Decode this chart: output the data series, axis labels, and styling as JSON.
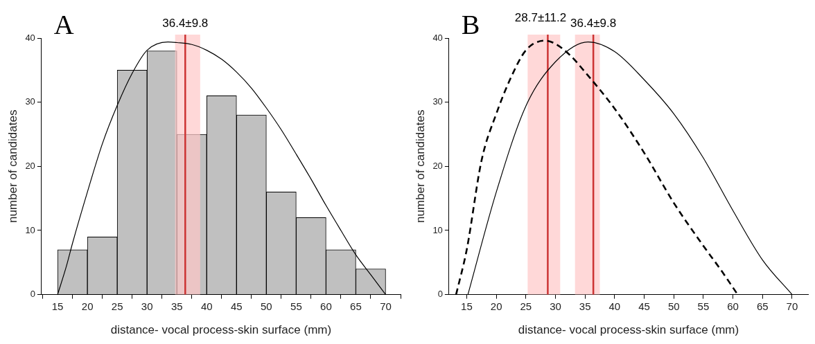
{
  "chart_data": [
    {
      "type": "histogram",
      "title": "A",
      "xlabel": "distance- vocal process-skin surface (mm)",
      "ylabel": "number of candidates",
      "bins": [
        15,
        20,
        25,
        30,
        35,
        40,
        45,
        50,
        55,
        60,
        65,
        70
      ],
      "values": [
        7,
        9,
        35,
        38,
        25,
        31,
        28,
        16,
        12,
        7,
        4
      ],
      "color": "#c0c0c0",
      "series": [
        {
          "type": "line",
          "color": "#000000",
          "line_style": "solid",
          "x": [
            15,
            16.5,
            17.5,
            20,
            22.5,
            25,
            27.5,
            30,
            33.5,
            35,
            37.5,
            40,
            42.5,
            45,
            47.5,
            50,
            52.5,
            55,
            57.5,
            60,
            62.5,
            65,
            67.5,
            70
          ],
          "values": [
            0,
            4.5,
            8,
            16,
            23.5,
            29.5,
            34.5,
            38.1,
            39.4,
            39.3,
            39,
            38.1,
            36.7,
            34.7,
            32.2,
            29.1,
            25.7,
            21.9,
            18,
            13.9,
            10,
            6.2,
            3.1,
            0
          ]
        }
      ],
      "xlim": [
        12.3,
        72.5
      ],
      "xticks": [
        15,
        20,
        25,
        30,
        35,
        40,
        45,
        50,
        55,
        60,
        65,
        70
      ],
      "ylim": [
        0,
        40
      ],
      "yticks": [
        0,
        10,
        20,
        30,
        40
      ],
      "grid": false,
      "legend": false,
      "marker": "none",
      "ref_lines": [
        {
          "axis": "x",
          "value": 36.4,
          "label": "36.4±9.8",
          "color": "#cc3333"
        }
      ],
      "bands": [
        {
          "axis": "x",
          "from": 34.7,
          "to": 38.9,
          "color": "#ffc8c8"
        }
      ]
    },
    {
      "type": "line",
      "title": "B",
      "xlabel": "distance- vocal process-skin surface (mm)",
      "ylabel": "number of candidates",
      "series": [
        {
          "color": "#000000",
          "line_style": "dashed",
          "x": [
            13.2,
            15,
            17.5,
            20,
            22.5,
            25,
            28.3,
            30,
            32.5,
            35,
            40,
            45,
            50,
            55,
            58,
            60.8
          ],
          "values": [
            0,
            7,
            20.9,
            28.2,
            33.9,
            38.1,
            39.6,
            39.1,
            37.3,
            34.7,
            29,
            22.1,
            14.3,
            7.6,
            3.8,
            0
          ]
        },
        {
          "color": "#000000",
          "line_style": "solid",
          "x": [
            15.2,
            20,
            25,
            30,
            35.5,
            40,
            45,
            50,
            55,
            60,
            65,
            70
          ],
          "values": [
            0,
            16,
            29.4,
            36.3,
            39.4,
            37.9,
            33.5,
            28.2,
            21.3,
            13.1,
            5.4,
            0
          ]
        }
      ],
      "xlim": [
        12,
        72.7
      ],
      "xticks": [
        15,
        20,
        25,
        30,
        35,
        40,
        45,
        50,
        55,
        60,
        65,
        70
      ],
      "ylim": [
        0,
        40
      ],
      "yticks": [
        0,
        10,
        20,
        30,
        40
      ],
      "grid": false,
      "legend": false,
      "marker": "none",
      "ref_lines": [
        {
          "axis": "x",
          "value": 28.7,
          "label": "28.7±11.2",
          "color": "#cc3333"
        },
        {
          "axis": "x",
          "value": 36.4,
          "label": "36.4±9.8",
          "color": "#cc3333"
        }
      ],
      "bands": [
        {
          "axis": "x",
          "from": 25.3,
          "to": 30.8,
          "color": "#ffc8c8"
        },
        {
          "axis": "x",
          "from": 33.3,
          "to": 37.5,
          "color": "#ffc8c8"
        }
      ]
    }
  ]
}
